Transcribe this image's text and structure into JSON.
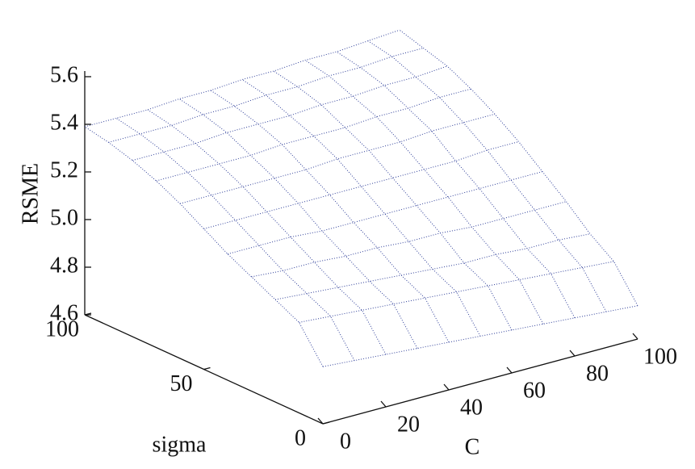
{
  "chart_data": {
    "type": "surface",
    "xlabel": "C",
    "ylabel": "sigma",
    "zlabel": "RSME",
    "x": [
      0,
      10,
      20,
      30,
      40,
      50,
      60,
      70,
      80,
      90,
      100
    ],
    "y": [
      0,
      10,
      20,
      30,
      40,
      50,
      60,
      70,
      80,
      90,
      100
    ],
    "z": [
      [
        4.84,
        4.83,
        4.82,
        4.81,
        4.8,
        4.79,
        4.78,
        4.77,
        4.76,
        4.75,
        4.74
      ],
      [
        4.98,
        4.97,
        4.96,
        4.95,
        4.94,
        4.93,
        4.92,
        4.91,
        4.9,
        4.89,
        4.88
      ],
      [
        5.03,
        5.02,
        5.01,
        5.0,
        4.99,
        4.98,
        4.97,
        4.97,
        4.96,
        4.96,
        4.95
      ],
      [
        5.08,
        5.07,
        5.07,
        5.06,
        5.06,
        5.05,
        5.05,
        5.04,
        5.04,
        5.04,
        5.04
      ],
      [
        5.13,
        5.13,
        5.13,
        5.12,
        5.12,
        5.12,
        5.12,
        5.12,
        5.12,
        5.12,
        5.12
      ],
      [
        5.19,
        5.19,
        5.19,
        5.19,
        5.19,
        5.19,
        5.19,
        5.19,
        5.19,
        5.2,
        5.2
      ],
      [
        5.25,
        5.25,
        5.25,
        5.25,
        5.25,
        5.26,
        5.26,
        5.26,
        5.27,
        5.27,
        5.27
      ],
      [
        5.3,
        5.3,
        5.3,
        5.3,
        5.31,
        5.31,
        5.31,
        5.32,
        5.32,
        5.33,
        5.33
      ],
      [
        5.34,
        5.34,
        5.34,
        5.35,
        5.35,
        5.35,
        5.36,
        5.36,
        5.37,
        5.37,
        5.38
      ],
      [
        5.37,
        5.37,
        5.37,
        5.38,
        5.38,
        5.39,
        5.39,
        5.4,
        5.4,
        5.41,
        5.41
      ],
      [
        5.39,
        5.39,
        5.39,
        5.4,
        5.4,
        5.41,
        5.41,
        5.42,
        5.42,
        5.43,
        5.44
      ]
    ],
    "color": "#2f3f99",
    "xlim": [
      0,
      100
    ],
    "ylim": [
      0,
      100
    ],
    "zlim": [
      4.6,
      5.6
    ],
    "xticks": [
      0,
      20,
      40,
      60,
      80,
      100
    ],
    "yticks": [
      0,
      50,
      100
    ],
    "zticks": [
      4.6,
      4.8,
      {
        "value": 5,
        "label": "5.0"
      },
      5.2,
      5.4,
      5.6
    ]
  }
}
